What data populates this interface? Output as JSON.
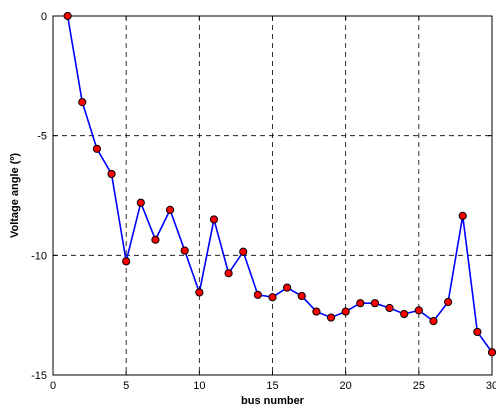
{
  "chart_data": {
    "type": "line",
    "title": "",
    "xlabel": "bus number",
    "ylabel": "Voltage angle (º)",
    "xlim": [
      0,
      30
    ],
    "ylim": [
      -15,
      0
    ],
    "x_ticks": [
      0,
      5,
      10,
      15,
      20,
      25,
      30
    ],
    "y_ticks": [
      0,
      -5,
      -10,
      -15
    ],
    "x_tick_labels": [
      "0",
      "5",
      "10",
      "15",
      "20",
      "25",
      "30"
    ],
    "y_tick_labels": [
      "0",
      "-5",
      "-10",
      "-15"
    ],
    "grid": true,
    "grid_style": "dashed",
    "line_color": "#0000ff",
    "marker_color": "#ff0000",
    "marker_edge_color": "#000000",
    "series": [
      {
        "x": [
          1,
          2,
          3,
          4,
          5,
          6,
          7,
          8,
          9,
          10,
          11,
          12,
          13,
          14,
          15,
          16,
          17,
          18,
          19,
          20,
          21,
          22,
          23,
          24,
          25,
          26,
          27,
          28,
          29,
          30
        ],
        "values": [
          0,
          -3.6,
          -5.55,
          -6.6,
          -10.25,
          -7.8,
          -9.35,
          -8.1,
          -9.8,
          -11.55,
          -8.5,
          -10.75,
          -9.85,
          -11.65,
          -11.75,
          -11.35,
          -11.7,
          -12.35,
          -12.6,
          -12.35,
          -12.0,
          -12.0,
          -12.2,
          -12.45,
          -12.3,
          -12.75,
          -11.95,
          -8.35,
          -13.2,
          -14.05
        ]
      }
    ]
  }
}
